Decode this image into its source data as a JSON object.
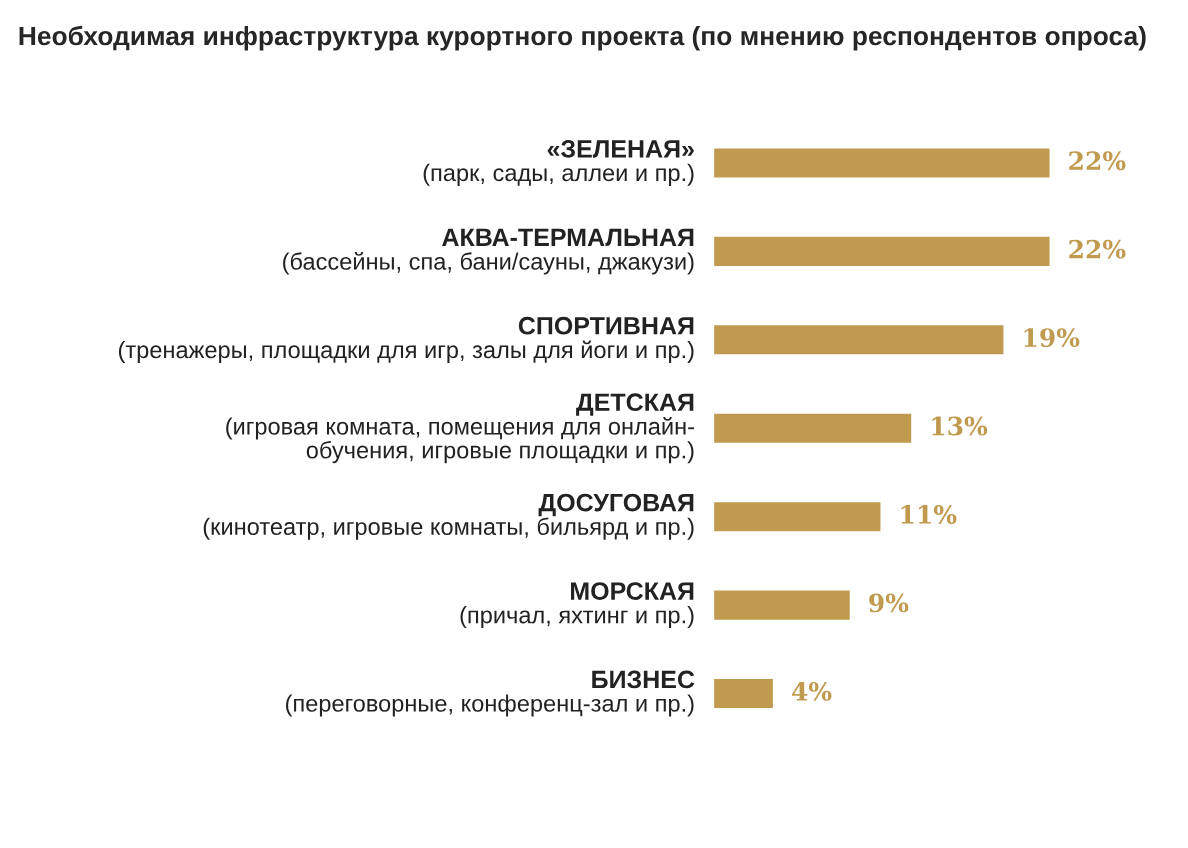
{
  "chart_data": {
    "type": "bar",
    "orientation": "horizontal",
    "title": "Необходимая инфраструктура курортного проекта (по мнению респондентов опроса)",
    "categories": [
      "«ЗЕЛЕНАЯ»\n(парк, сады, аллеи и пр.)",
      "АКВА-ТЕРМАЛЬНАЯ\n(бассейны, спа, бани/сауны, джакузи)",
      "СПОРТИВНАЯ\n(тренажеры, площадки для игр, залы для йоги и пр.)",
      "ДЕТСКАЯ\n(игровая комната, помещения для онлайн-\nобучения, игровые площадки и пр.)",
      "ДОСУГОВАЯ\n(кинотеатр, игровые комнаты, бильярд и пр.)",
      "МОРСКАЯ\n(причал, яхтинг и пр.)",
      "БИЗНЕС\n(переговорные, конференц-зал и пр.)"
    ],
    "values": [
      22,
      22,
      19,
      13,
      11,
      9,
      4
    ],
    "value_labels": [
      "22%",
      "22%",
      "19%",
      "13%",
      "11%",
      "9%",
      "4%"
    ],
    "color": "#c09a4e"
  }
}
